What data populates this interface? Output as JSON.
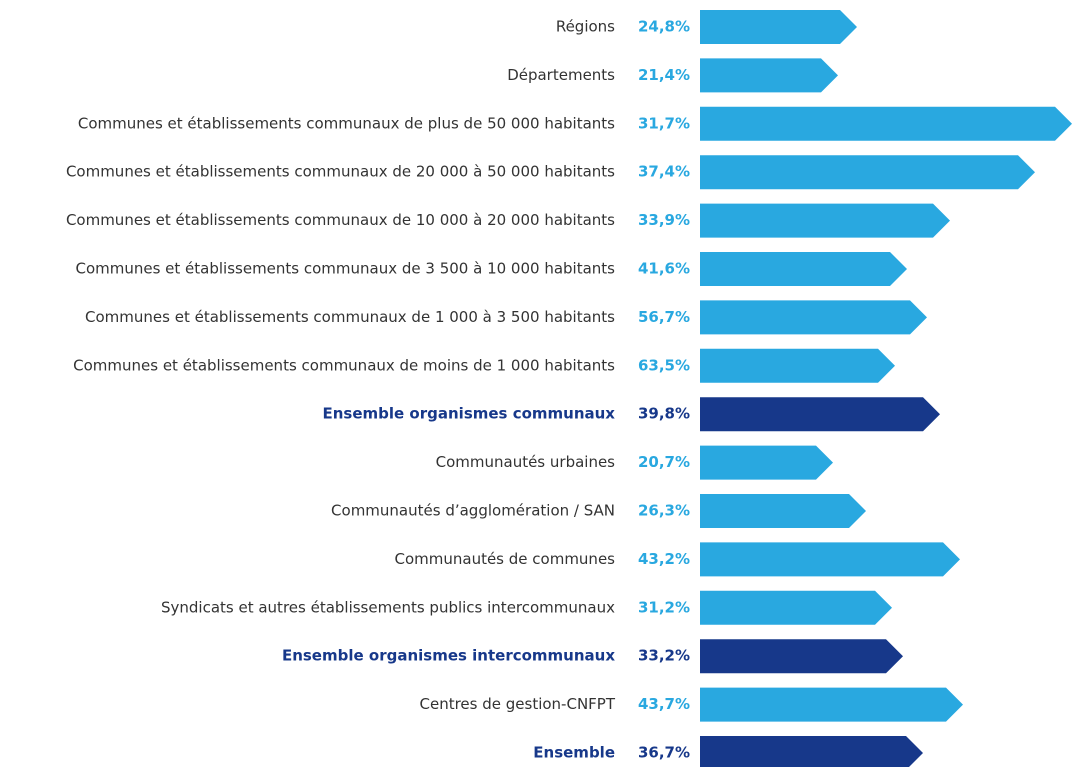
{
  "chart_data": {
    "type": "bar",
    "categories": [
      "Régions",
      "Départements",
      "Communes et établissements communaux de plus de 50 000 habitants",
      "Communes et établissements communaux de 20 000 à 50 000 habitants",
      "Communes et établissements communaux de 10 000 à 20 000 habitants",
      "Communes et établissements communaux de 3 500 à 10 000 habitants",
      "Communes et établissements communaux de 1 000 à 3 500 habitants",
      "Communes et établissements communaux de moins de 1 000 habitants",
      "Ensemble organismes communaux",
      "Communautés urbaines",
      "Communautés d’agglomération / SAN",
      "Communautés de communes",
      "Syndicats et autres établissements publics intercommunaux",
      "Ensemble organismes intercommunaux",
      "Centres de gestion-CNFPT",
      "Ensemble"
    ],
    "rate_labels": [
      "24,8%",
      "21,4%",
      "31,7%",
      "37,4%",
      "33,9%",
      "41,6%",
      "56,7%",
      "63,5%",
      "39,8%",
      "20,7%",
      "26,3%",
      "43,2%",
      "31,2%",
      "33,2%",
      "43,7%",
      "36,7%"
    ],
    "values": [
      157,
      138,
      372,
      335,
      250,
      207,
      227,
      195,
      240,
      133,
      166,
      260,
      192,
      203,
      263,
      223
    ],
    "xlim": [
      0,
      372
    ],
    "colors": [
      "#29a8e0",
      "#29a8e0",
      "#29a8e0",
      "#29a8e0",
      "#29a8e0",
      "#29a8e0",
      "#29a8e0",
      "#29a8e0",
      "#17388a",
      "#29a8e0",
      "#29a8e0",
      "#29a8e0",
      "#29a8e0",
      "#17388a",
      "#29a8e0",
      "#17388a"
    ]
  }
}
